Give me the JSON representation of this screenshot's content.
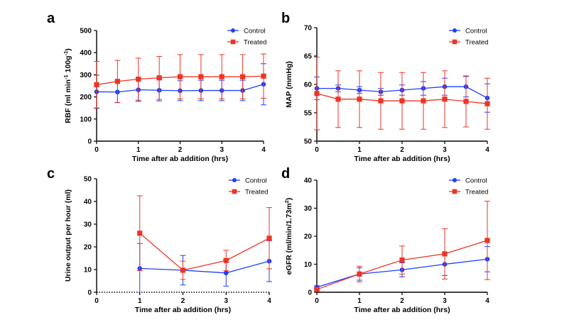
{
  "colors": {
    "control": "#1f3fff",
    "treated": "#ee3424",
    "axis": "#000000"
  },
  "chart_data": [
    {
      "panel": "a",
      "type": "line",
      "ylabel_main": "RBF (ml min",
      "ylabel_sup1": "-1",
      "ylabel_mid": " 100g",
      "ylabel_sup2": "-1",
      "ylabel_end": ")",
      "xlabel": "Time after ab addition (hrs)",
      "xlim": [
        0,
        4
      ],
      "ylim": [
        0,
        500
      ],
      "xticks": [
        0,
        1,
        2,
        3,
        4
      ],
      "yticks": [
        0,
        100,
        200,
        300,
        400,
        500
      ],
      "legend": [
        "Control",
        "Treated"
      ],
      "legend_position": "top-right",
      "series": [
        {
          "name": "Control",
          "color_key": "control",
          "marker": "circle",
          "x": [
            0,
            0.5,
            1,
            1.5,
            2,
            2.5,
            3,
            3.5,
            4
          ],
          "y": [
            223,
            222,
            232,
            230,
            228,
            229,
            229,
            229,
            257
          ],
          "err": [
            75,
            48,
            52,
            48,
            45,
            46,
            46,
            46,
            93
          ]
        },
        {
          "name": "Treated",
          "color_key": "treated",
          "marker": "square",
          "x": [
            0,
            0.5,
            1,
            1.5,
            2,
            2.5,
            3,
            3.5,
            4
          ],
          "y": [
            255,
            270,
            280,
            286,
            291,
            291,
            291,
            291,
            294
          ],
          "err": [
            105,
            95,
            95,
            97,
            100,
            100,
            100,
            100,
            100
          ]
        }
      ]
    },
    {
      "panel": "b",
      "type": "line",
      "ylabel": "MAP (mmHg)",
      "xlabel": "Time after ab addition (hrs)",
      "xlim": [
        0,
        4
      ],
      "ylim": [
        50,
        70
      ],
      "xticks": [
        0,
        1,
        2,
        3,
        4
      ],
      "yticks": [
        50,
        55,
        60,
        65,
        70
      ],
      "legend": [
        "Control",
        "Treated"
      ],
      "legend_position": "top-right",
      "series": [
        {
          "name": "Control",
          "color_key": "control",
          "marker": "circle",
          "x": [
            0,
            0.5,
            1,
            1.5,
            2,
            2.5,
            3,
            3.5,
            4
          ],
          "y": [
            59.3,
            59.3,
            59.0,
            58.7,
            59.0,
            59.3,
            59.6,
            59.6,
            57.6
          ],
          "err": [
            2.0,
            0.6,
            0.6,
            0.6,
            0.9,
            1.2,
            1.5,
            1.8,
            2.5
          ]
        },
        {
          "name": "Treated",
          "color_key": "treated",
          "marker": "square",
          "x": [
            0,
            0.5,
            1,
            1.5,
            2,
            2.5,
            3,
            3.5,
            4
          ],
          "y": [
            58.4,
            57.4,
            57.4,
            57.1,
            57.1,
            57.1,
            57.4,
            57.0,
            56.6
          ],
          "err": [
            6.4,
            5.0,
            5.0,
            5.0,
            5.0,
            5.0,
            5.0,
            4.5,
            4.5
          ]
        }
      ]
    },
    {
      "panel": "c",
      "type": "line",
      "ylabel": "Urine output per hour (ml)",
      "xlabel": "Time after ab addition (hrs)",
      "xlim": [
        0,
        4
      ],
      "ylim": [
        0,
        50
      ],
      "xticks": [
        0,
        1,
        2,
        3,
        4
      ],
      "yticks": [
        0,
        10,
        20,
        30,
        40,
        50
      ],
      "dotted_baseline": true,
      "legend": [
        "Control",
        "Treated"
      ],
      "legend_position": "top-right",
      "series": [
        {
          "name": "Control",
          "color_key": "control",
          "marker": "circle",
          "x": [
            1,
            2,
            3,
            4
          ],
          "y": [
            10.5,
            9.7,
            8.5,
            13.7
          ],
          "err": [
            11,
            6.5,
            5.8,
            9.0
          ]
        },
        {
          "name": "Treated",
          "color_key": "treated",
          "marker": "square",
          "x": [
            1,
            2,
            3,
            4
          ],
          "y": [
            26.0,
            9.7,
            14.0,
            23.8
          ],
          "err": [
            16.5,
            4.0,
            4.5,
            13.5
          ]
        }
      ]
    },
    {
      "panel": "d",
      "type": "line",
      "ylabel_main": "eGFR (ml/min/1.73m",
      "ylabel_sup1": "2",
      "ylabel_end": ")",
      "xlabel": "Time after ab addition (hrs)",
      "xlim": [
        0,
        4
      ],
      "ylim": [
        0,
        40
      ],
      "xticks": [
        0,
        1,
        2,
        3,
        4
      ],
      "yticks": [
        0,
        10,
        20,
        30,
        40
      ],
      "legend": [
        "Control",
        "Treated"
      ],
      "legend_position": "top-right",
      "series": [
        {
          "name": "Control",
          "color_key": "control",
          "marker": "circle",
          "x": [
            0,
            1,
            2,
            3,
            4
          ],
          "y": [
            1.8,
            6.5,
            8.0,
            10.0,
            11.8
          ],
          "err": [
            0.5,
            2.2,
            2.5,
            4.0,
            4.5
          ]
        },
        {
          "name": "Treated",
          "color_key": "treated",
          "marker": "square",
          "x": [
            0,
            1,
            2,
            3,
            4
          ],
          "y": [
            1.0,
            6.5,
            11.5,
            13.7,
            18.5
          ],
          "err": [
            0.5,
            2.8,
            5.0,
            9.0,
            14.0
          ]
        }
      ]
    }
  ]
}
